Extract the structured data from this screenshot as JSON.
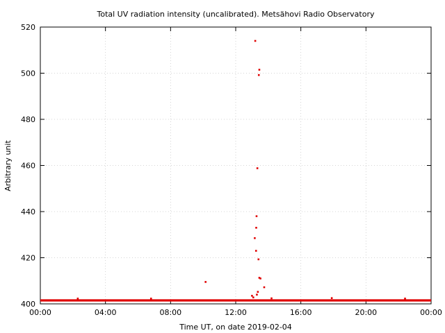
{
  "chart_data": {
    "type": "scatter",
    "title": "Total UV radiation intensity (uncalibrated). Metsähovi Radio Observatory",
    "xlabel": "Time UT, on date 2019-02-04",
    "ylabel": "Arbitrary unit",
    "xlim": [
      0,
      24
    ],
    "ylim": [
      400,
      520
    ],
    "x_ticks": [
      "00:00",
      "04:00",
      "08:00",
      "12:00",
      "16:00",
      "20:00",
      "00:00"
    ],
    "y_ticks": [
      "400",
      "420",
      "440",
      "460",
      "480",
      "500",
      "520"
    ],
    "grid": true,
    "series_color": "#e00000",
    "baseline": {
      "value": 401.5,
      "x_start": 0,
      "x_end": 24
    },
    "points": [
      {
        "x": 10.15,
        "y": 409.5
      },
      {
        "x": 13.2,
        "y": 514.0
      },
      {
        "x": 13.45,
        "y": 501.5
      },
      {
        "x": 13.42,
        "y": 499.2
      },
      {
        "x": 13.33,
        "y": 458.8
      },
      {
        "x": 13.28,
        "y": 438.0
      },
      {
        "x": 13.26,
        "y": 433.0
      },
      {
        "x": 13.17,
        "y": 428.5
      },
      {
        "x": 13.25,
        "y": 423.0
      },
      {
        "x": 13.4,
        "y": 419.3
      },
      {
        "x": 13.45,
        "y": 411.3
      },
      {
        "x": 13.52,
        "y": 411.0
      },
      {
        "x": 13.75,
        "y": 407.2
      },
      {
        "x": 13.36,
        "y": 405.2
      },
      {
        "x": 13.3,
        "y": 404.0
      },
      {
        "x": 13.0,
        "y": 403.5
      },
      {
        "x": 13.08,
        "y": 402.8
      },
      {
        "x": 14.2,
        "y": 402.4
      },
      {
        "x": 17.9,
        "y": 402.5
      },
      {
        "x": 2.3,
        "y": 402.3
      },
      {
        "x": 6.8,
        "y": 402.3
      },
      {
        "x": 22.4,
        "y": 402.3
      }
    ]
  }
}
